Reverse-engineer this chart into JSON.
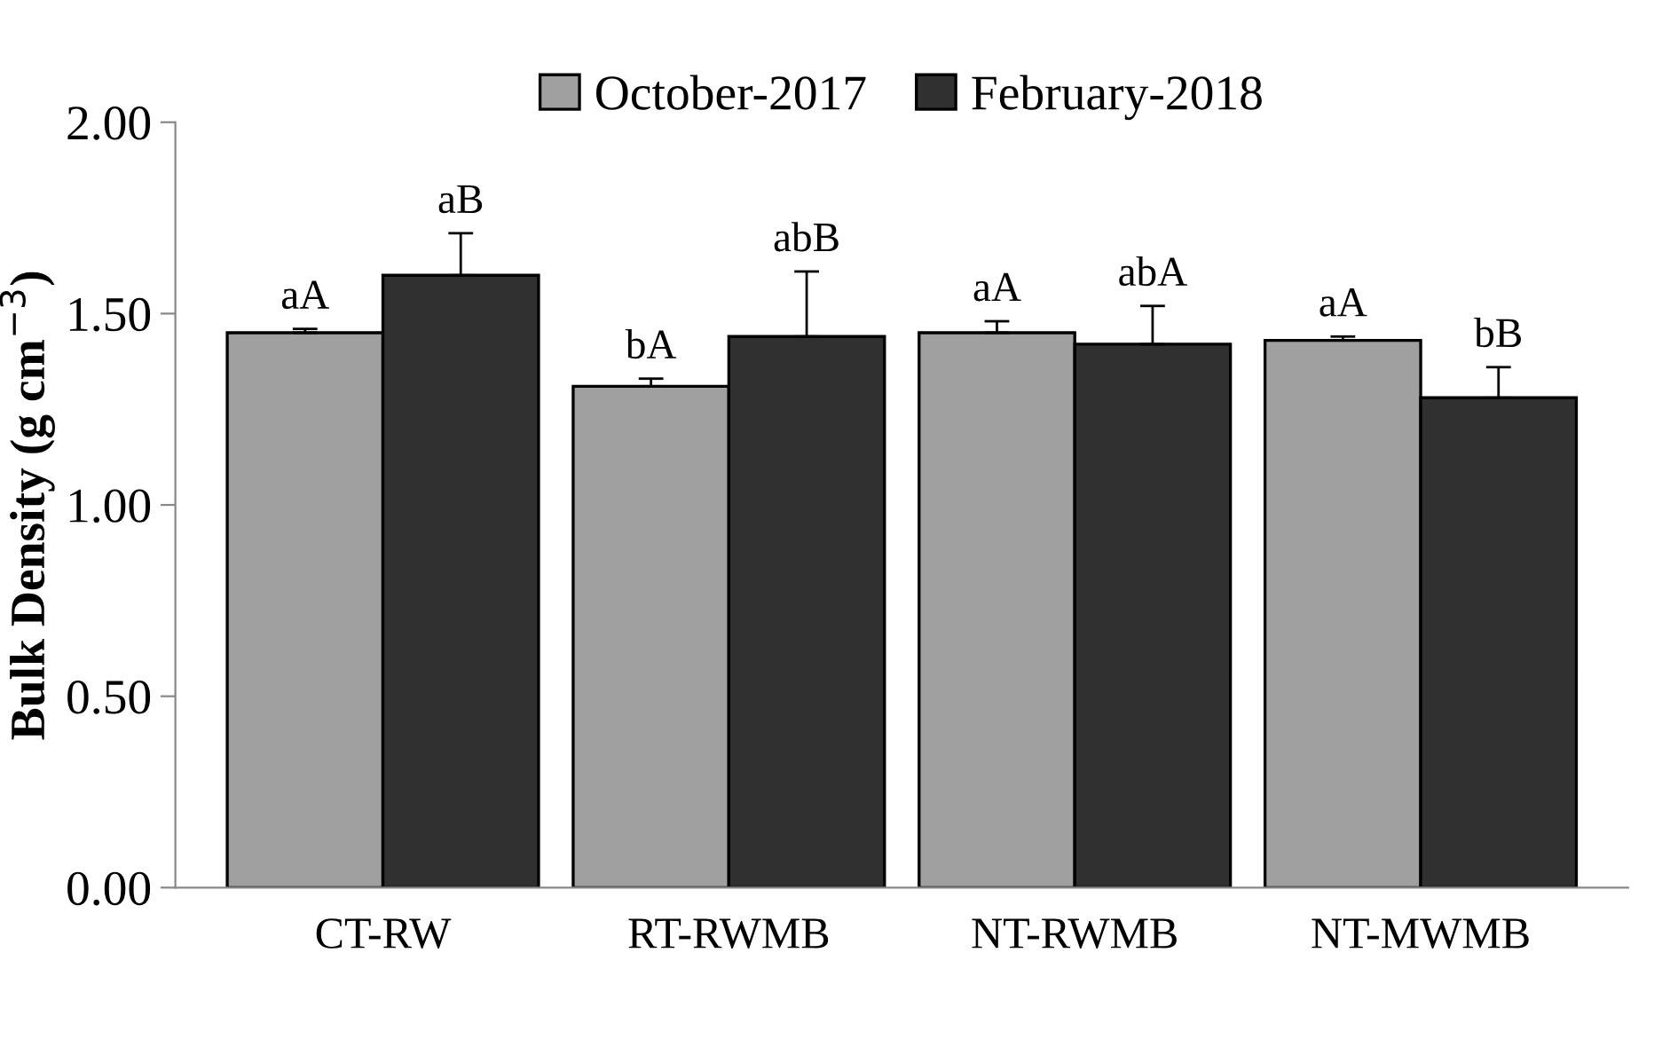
{
  "chart_data": {
    "type": "bar",
    "ylabel": "Bulk Density (g cm$^{−3}$)",
    "categories": [
      "CT-RW",
      "RT-RWMB",
      "NT-RWMB",
      "NT-MWMB"
    ],
    "series": [
      {
        "name": "October-2017",
        "color": "#a0a0a0",
        "values": [
          1.45,
          1.31,
          1.45,
          1.43
        ],
        "errors": [
          0.01,
          0.02,
          0.03,
          0.01
        ],
        "value_labels": [
          "aA",
          "bA",
          "aA",
          "aA"
        ]
      },
      {
        "name": "February-2018",
        "color": "#303030",
        "values": [
          1.6,
          1.44,
          1.42,
          1.28
        ],
        "errors": [
          0.11,
          0.17,
          0.1,
          0.08
        ],
        "value_labels": [
          "aB",
          "abB",
          "abA",
          "bB"
        ]
      }
    ],
    "ylim": [
      0,
      2
    ],
    "yticks": [
      {
        "value": 0,
        "label": "0.00"
      },
      {
        "value": 0.5,
        "label": "0.50"
      },
      {
        "value": 1,
        "label": "1.00"
      },
      {
        "value": 1.5,
        "label": "1.50"
      },
      {
        "value": 2,
        "label": "2.00"
      }
    ],
    "legend": "top",
    "grid": false
  }
}
